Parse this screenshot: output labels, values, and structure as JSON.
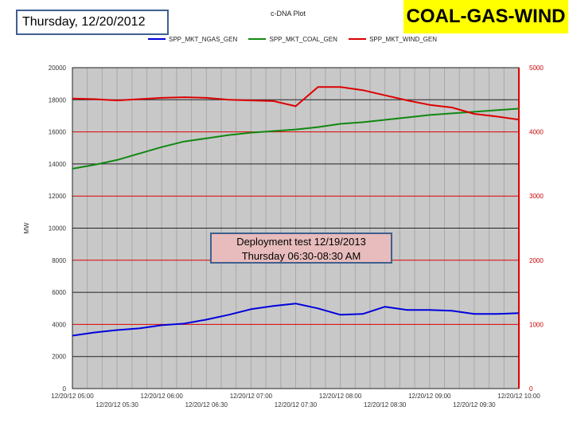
{
  "header": {
    "date_label": "Thursday, 12/20/2012",
    "brand_label": "COAL-GAS-WIND",
    "brand_color": "#ffff00"
  },
  "annotation": {
    "line1": "Deployment test   12/19/2013",
    "line2": "Thursday   06:30-08:30 AM"
  },
  "chart_data": {
    "type": "line",
    "title": "c-DNA Plot",
    "ylabel": "MW",
    "y_left_lim": [
      0,
      20000
    ],
    "y_left_ticks": [
      0,
      2000,
      4000,
      6000,
      8000,
      10000,
      12000,
      14000,
      16000,
      18000,
      20000
    ],
    "y_right_lim": [
      0,
      5000
    ],
    "y_right_ticks": [
      0,
      1000,
      2000,
      3000,
      4000,
      5000
    ],
    "x_range": [
      "12/20/12 05:00",
      "12/20/12 10:00"
    ],
    "x_ticks_major": [
      "12/20/12 05:00",
      "12/20/12 06:00",
      "12/20/12 07:00",
      "12/20/12 08:00",
      "12/20/12 09:00",
      "12/20/12 10:00"
    ],
    "x_ticks_minor": [
      "12/20/12 05:30",
      "12/20/12 06:30",
      "12/20/12 07:30",
      "12/20/12 08:30",
      "12/20/12 09:30"
    ],
    "x_hours": [
      5.0,
      5.25,
      5.5,
      5.75,
      6.0,
      6.25,
      6.5,
      6.75,
      7.0,
      7.25,
      7.5,
      7.75,
      8.0,
      8.25,
      8.5,
      8.75,
      9.0,
      9.25,
      9.5,
      9.75,
      10.0
    ],
    "grid": true,
    "legend_position": "top",
    "series": [
      {
        "name": "SPP_MKT_NGAS_GEN",
        "color": "#0000dd",
        "axis": "left",
        "values": [
          3300,
          3500,
          3650,
          3750,
          3950,
          4050,
          4300,
          4600,
          4950,
          5150,
          5300,
          5000,
          4600,
          4650,
          5100,
          4900,
          4900,
          4850,
          4650,
          4650,
          4700
        ]
      },
      {
        "name": "SPP_MKT_COAL_GEN",
        "color": "#118811",
        "axis": "left",
        "values": [
          13700,
          13950,
          14250,
          14650,
          15050,
          15400,
          15600,
          15800,
          15950,
          16050,
          16150,
          16300,
          16500,
          16600,
          16750,
          16900,
          17050,
          17150,
          17250,
          17350,
          17450
        ]
      },
      {
        "name": "SPP_MKT_WIND_GEN",
        "color": "#dd0000",
        "axis": "right",
        "values": [
          4520,
          4510,
          4490,
          4510,
          4530,
          4540,
          4530,
          4500,
          4490,
          4480,
          4400,
          4700,
          4700,
          4650,
          4570,
          4490,
          4420,
          4380,
          4280,
          4240,
          4190
        ]
      }
    ]
  }
}
